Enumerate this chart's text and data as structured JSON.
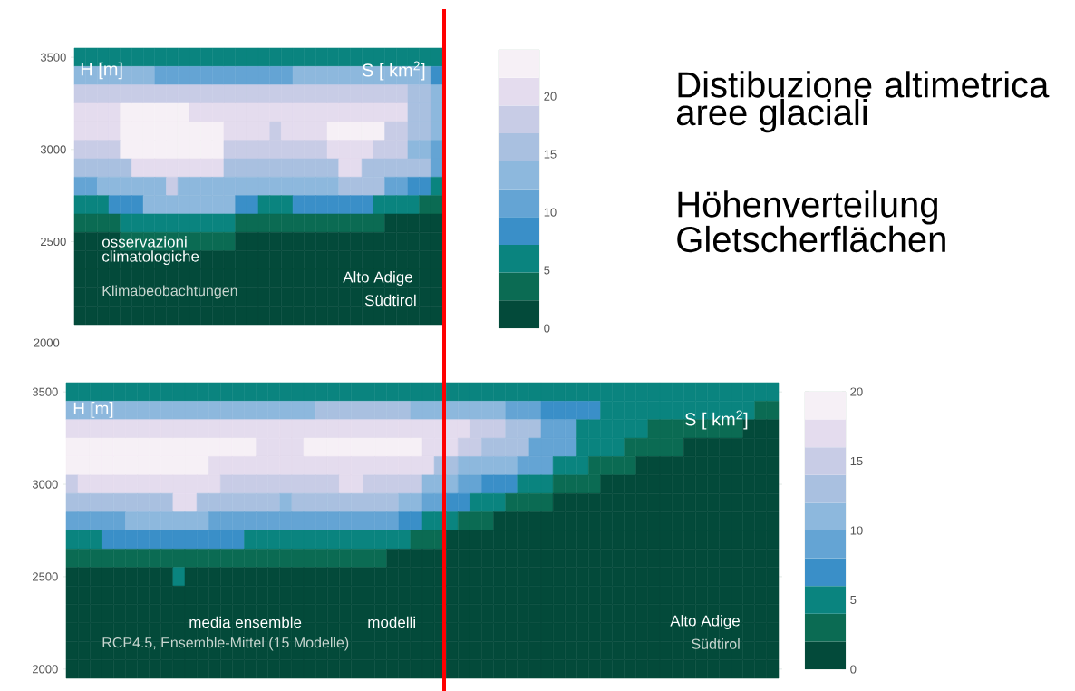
{
  "chart_data": [
    {
      "type": "heatmap",
      "categories": [
        null,
        null,
        null,
        null,
        null,
        null,
        null,
        null,
        null,
        null,
        null,
        null,
        null,
        null,
        null,
        null,
        null,
        null,
        null,
        null,
        null,
        null,
        null,
        null,
        null,
        null,
        null,
        null,
        null,
        null,
        null,
        null
      ],
      "y_categories": [
        "3500",
        null,
        null,
        null,
        null,
        "3000",
        null,
        null,
        null,
        null,
        "2500",
        null,
        null,
        null,
        null
      ],
      "clim": [
        0,
        24
      ],
      "cticks": [
        0,
        5,
        10,
        15,
        20
      ],
      "cells": [
        [
          6,
          6,
          6,
          6,
          6,
          6,
          6,
          6,
          6,
          6,
          6,
          6,
          6,
          6,
          6,
          6,
          6,
          6,
          6,
          6,
          6,
          6,
          6,
          6,
          6,
          6,
          6,
          6,
          6,
          6,
          6,
          6
        ],
        [
          13,
          13,
          13,
          13,
          13,
          13,
          13,
          11,
          11,
          11,
          11,
          11,
          11,
          11,
          11,
          11,
          11,
          11,
          11,
          13,
          13,
          13,
          13,
          13,
          13,
          13,
          13,
          13,
          13,
          13,
          13,
          8
        ],
        [
          18,
          18,
          18,
          18,
          18,
          18,
          18,
          18,
          18,
          18,
          18,
          18,
          18,
          18,
          18,
          18,
          18,
          18,
          18,
          18,
          18,
          18,
          18,
          18,
          18,
          18,
          18,
          18,
          18,
          16,
          16,
          13
        ],
        [
          20,
          20,
          20,
          20,
          23,
          23,
          23,
          23,
          23,
          23,
          20,
          20,
          20,
          20,
          20,
          20,
          20,
          20,
          20,
          20,
          20,
          20,
          20,
          20,
          20,
          20,
          20,
          20,
          20,
          16,
          16,
          13
        ],
        [
          20,
          20,
          20,
          20,
          23,
          23,
          23,
          23,
          23,
          23,
          23,
          23,
          23,
          20,
          20,
          20,
          20,
          18,
          20,
          20,
          20,
          20,
          23,
          23,
          23,
          23,
          23,
          18,
          18,
          16,
          16,
          13
        ],
        [
          18,
          18,
          18,
          18,
          23,
          23,
          23,
          23,
          23,
          23,
          23,
          23,
          23,
          18,
          18,
          18,
          18,
          18,
          18,
          18,
          18,
          18,
          20,
          20,
          20,
          20,
          18,
          18,
          18,
          13,
          13,
          11
        ],
        [
          16,
          16,
          16,
          16,
          16,
          20,
          20,
          20,
          20,
          20,
          20,
          20,
          20,
          16,
          16,
          16,
          16,
          16,
          16,
          16,
          16,
          16,
          16,
          20,
          20,
          16,
          16,
          16,
          16,
          16,
          16,
          11
        ],
        [
          11,
          11,
          13,
          13,
          13,
          13,
          13,
          13,
          18,
          13,
          13,
          13,
          13,
          13,
          13,
          13,
          13,
          13,
          13,
          13,
          13,
          13,
          13,
          16,
          16,
          16,
          16,
          11,
          11,
          8,
          8,
          6
        ],
        [
          6,
          6,
          6,
          8,
          8,
          8,
          13,
          13,
          13,
          13,
          13,
          13,
          13,
          13,
          8,
          8,
          6,
          6,
          6,
          8,
          8,
          8,
          8,
          8,
          8,
          8,
          6,
          6,
          6,
          6,
          4,
          4
        ],
        [
          4,
          4,
          4,
          4,
          6,
          6,
          6,
          6,
          6,
          6,
          6,
          6,
          6,
          6,
          4,
          4,
          4,
          4,
          4,
          4,
          4,
          4,
          4,
          4,
          4,
          4,
          4,
          1,
          1,
          1,
          1,
          1
        ],
        [
          1,
          1,
          1,
          1,
          4,
          4,
          4,
          4,
          4,
          4,
          4,
          4,
          4,
          4,
          1,
          1,
          1,
          1,
          1,
          1,
          1,
          1,
          1,
          1,
          1,
          1,
          1,
          1,
          1,
          1,
          1,
          1
        ],
        [
          1,
          1,
          1,
          1,
          1,
          1,
          1,
          1,
          1,
          1,
          1,
          1,
          1,
          1,
          1,
          1,
          1,
          1,
          1,
          1,
          1,
          1,
          1,
          1,
          1,
          1,
          1,
          1,
          1,
          1,
          1,
          1
        ],
        [
          1,
          1,
          1,
          1,
          1,
          1,
          1,
          1,
          1,
          1,
          1,
          1,
          1,
          1,
          1,
          1,
          1,
          1,
          1,
          1,
          1,
          1,
          1,
          1,
          1,
          1,
          1,
          1,
          1,
          1,
          1,
          1
        ],
        [
          1,
          1,
          1,
          1,
          1,
          1,
          1,
          1,
          1,
          1,
          1,
          1,
          1,
          1,
          1,
          1,
          1,
          1,
          1,
          1,
          1,
          1,
          1,
          1,
          1,
          1,
          1,
          1,
          1,
          1,
          1,
          1
        ],
        [
          1,
          1,
          1,
          1,
          1,
          1,
          1,
          1,
          1,
          1,
          1,
          1,
          1,
          1,
          1,
          1,
          1,
          1,
          1,
          1,
          1,
          1,
          1,
          1,
          1,
          1,
          1,
          1,
          1,
          1,
          1,
          1
        ]
      ],
      "annotations": [
        "H [m]",
        "S [ km$^{2}$]",
        "osservazioni climatologiche",
        "Klimabeobachtungen",
        "Alto Adige",
        "Südtirol",
        "2000"
      ]
    },
    {
      "type": "heatmap",
      "categories": [
        null,
        null,
        null,
        null,
        null,
        null,
        null,
        null,
        null,
        null,
        null,
        null,
        null,
        null,
        null,
        null,
        null,
        null,
        null,
        null,
        null,
        null,
        null,
        null,
        null,
        null,
        null,
        null,
        null,
        null,
        null,
        null,
        null,
        null,
        null,
        null,
        null,
        null,
        null,
        null,
        null,
        null,
        null,
        null,
        null,
        null,
        null,
        null,
        null,
        null,
        null,
        null,
        null,
        null,
        null,
        null,
        null,
        null,
        null,
        null
      ],
      "y_categories": [
        "3500",
        null,
        null,
        null,
        null,
        "3000",
        null,
        null,
        null,
        null,
        "2500",
        null,
        null,
        null,
        null,
        "2000"
      ],
      "clim": [
        0,
        20
      ],
      "cticks": [
        0,
        5,
        10,
        15,
        20
      ],
      "cells": [
        [
          5,
          5,
          5,
          5,
          5,
          5,
          5,
          5,
          5,
          5,
          5,
          5,
          5,
          5,
          5,
          5,
          5,
          5,
          5,
          5,
          5,
          5,
          5,
          5,
          5,
          5,
          5,
          5,
          5,
          5,
          5,
          5,
          5,
          5,
          5,
          5,
          5,
          5,
          5,
          5,
          5,
          5,
          5,
          5,
          5,
          5,
          5,
          5,
          5,
          5,
          5,
          5,
          5,
          5,
          5,
          5,
          5,
          5,
          5,
          5
        ],
        [
          11,
          11,
          11,
          11,
          11,
          11,
          11,
          11,
          11,
          11,
          11,
          11,
          11,
          11,
          11,
          11,
          11,
          11,
          11,
          11,
          11,
          13,
          13,
          13,
          13,
          13,
          13,
          13,
          13,
          11,
          11,
          11,
          11,
          11,
          11,
          11,
          11,
          9,
          9,
          9,
          7,
          7,
          7,
          7,
          7,
          5,
          5,
          5,
          5,
          5,
          5,
          5,
          5,
          5,
          5,
          5,
          5,
          5,
          3,
          3
        ],
        [
          17,
          17,
          17,
          17,
          17,
          17,
          17,
          17,
          17,
          17,
          17,
          17,
          17,
          17,
          17,
          17,
          17,
          17,
          17,
          17,
          17,
          17,
          17,
          17,
          17,
          17,
          17,
          17,
          17,
          17,
          17,
          17,
          17,
          17,
          15,
          15,
          15,
          13,
          13,
          13,
          9,
          9,
          9,
          5,
          5,
          5,
          5,
          5,
          5,
          3,
          3,
          3,
          3,
          3,
          3,
          3,
          3,
          1,
          1,
          1
        ],
        [
          19,
          19,
          19,
          19,
          19,
          19,
          19,
          19,
          19,
          19,
          19,
          19,
          19,
          19,
          19,
          19,
          17,
          17,
          17,
          17,
          19,
          19,
          19,
          19,
          19,
          19,
          19,
          19,
          19,
          19,
          17,
          17,
          17,
          15,
          15,
          13,
          13,
          13,
          13,
          9,
          9,
          9,
          9,
          5,
          5,
          5,
          5,
          3,
          3,
          3,
          3,
          3,
          1,
          1,
          1,
          1,
          1,
          1,
          1,
          1
        ],
        [
          19,
          19,
          19,
          19,
          19,
          19,
          19,
          19,
          19,
          19,
          19,
          19,
          17,
          17,
          17,
          17,
          17,
          17,
          17,
          17,
          17,
          17,
          17,
          17,
          17,
          17,
          17,
          17,
          17,
          17,
          17,
          13,
          13,
          11,
          11,
          11,
          11,
          11,
          9,
          9,
          9,
          5,
          5,
          5,
          3,
          3,
          3,
          3,
          1,
          1,
          1,
          1,
          1,
          1,
          1,
          1,
          1,
          1,
          1,
          1
        ],
        [
          15,
          17,
          17,
          17,
          17,
          17,
          17,
          17,
          17,
          17,
          17,
          17,
          17,
          15,
          15,
          15,
          15,
          15,
          15,
          15,
          15,
          15,
          15,
          17,
          17,
          15,
          15,
          15,
          15,
          15,
          11,
          11,
          11,
          9,
          9,
          7,
          7,
          7,
          5,
          5,
          5,
          3,
          3,
          3,
          3,
          1,
          1,
          1,
          1,
          1,
          1,
          1,
          1,
          1,
          1,
          1,
          1,
          1,
          1,
          1
        ],
        [
          13,
          13,
          13,
          13,
          13,
          13,
          13,
          13,
          13,
          17,
          17,
          13,
          13,
          13,
          13,
          13,
          13,
          13,
          11,
          13,
          13,
          13,
          13,
          13,
          13,
          13,
          13,
          13,
          11,
          11,
          9,
          9,
          7,
          7,
          5,
          5,
          5,
          3,
          3,
          3,
          3,
          1,
          1,
          1,
          1,
          1,
          1,
          1,
          1,
          1,
          1,
          1,
          1,
          1,
          1,
          1,
          1,
          1,
          1,
          1
        ],
        [
          9,
          9,
          9,
          9,
          9,
          11,
          11,
          11,
          11,
          11,
          11,
          11,
          9,
          9,
          9,
          9,
          9,
          9,
          9,
          9,
          9,
          9,
          9,
          9,
          9,
          9,
          9,
          9,
          7,
          7,
          5,
          5,
          5,
          3,
          3,
          3,
          1,
          1,
          1,
          1,
          1,
          1,
          1,
          1,
          1,
          1,
          1,
          1,
          1,
          1,
          1,
          1,
          1,
          1,
          1,
          1,
          1,
          1,
          1,
          1
        ],
        [
          5,
          5,
          5,
          7,
          7,
          7,
          7,
          7,
          7,
          7,
          7,
          7,
          7,
          7,
          7,
          5,
          5,
          5,
          5,
          5,
          5,
          5,
          5,
          5,
          5,
          5,
          5,
          5,
          5,
          3,
          3,
          3,
          1,
          1,
          1,
          1,
          1,
          1,
          1,
          1,
          1,
          1,
          1,
          1,
          1,
          1,
          1,
          1,
          1,
          1,
          1,
          1,
          1,
          1,
          1,
          1,
          1,
          1,
          1,
          1
        ],
        [
          3,
          3,
          3,
          3,
          3,
          3,
          3,
          3,
          3,
          3,
          3,
          3,
          3,
          3,
          3,
          3,
          3,
          3,
          3,
          3,
          3,
          3,
          3,
          3,
          3,
          3,
          3,
          1,
          1,
          1,
          1,
          1,
          1,
          1,
          1,
          1,
          1,
          1,
          1,
          1,
          1,
          1,
          1,
          1,
          1,
          1,
          1,
          1,
          1,
          1,
          1,
          1,
          1,
          1,
          1,
          1,
          1,
          1,
          1,
          1
        ],
        [
          1,
          1,
          1,
          1,
          1,
          1,
          1,
          1,
          1,
          5,
          1,
          1,
          1,
          1,
          1,
          1,
          1,
          1,
          1,
          1,
          1,
          1,
          1,
          1,
          1,
          1,
          1,
          1,
          1,
          1,
          1,
          1,
          1,
          1,
          1,
          1,
          1,
          1,
          1,
          1,
          1,
          1,
          1,
          1,
          1,
          1,
          1,
          1,
          1,
          1,
          1,
          1,
          1,
          1,
          1,
          1,
          1,
          1,
          1,
          1
        ],
        [
          1,
          1,
          1,
          1,
          1,
          1,
          1,
          1,
          1,
          1,
          1,
          1,
          1,
          1,
          1,
          1,
          1,
          1,
          1,
          1,
          1,
          1,
          1,
          1,
          1,
          1,
          1,
          1,
          1,
          1,
          1,
          1,
          1,
          1,
          1,
          1,
          1,
          1,
          1,
          1,
          1,
          1,
          1,
          1,
          1,
          1,
          1,
          1,
          1,
          1,
          1,
          1,
          1,
          1,
          1,
          1,
          1,
          1,
          1,
          1
        ],
        [
          1,
          1,
          1,
          1,
          1,
          1,
          1,
          1,
          1,
          1,
          1,
          1,
          1,
          1,
          1,
          1,
          1,
          1,
          1,
          1,
          1,
          1,
          1,
          1,
          1,
          1,
          1,
          1,
          1,
          1,
          1,
          1,
          1,
          1,
          1,
          1,
          1,
          1,
          1,
          1,
          1,
          1,
          1,
          1,
          1,
          1,
          1,
          1,
          1,
          1,
          1,
          1,
          1,
          1,
          1,
          1,
          1,
          1,
          1,
          1
        ],
        [
          1,
          1,
          1,
          1,
          1,
          1,
          1,
          1,
          1,
          1,
          1,
          1,
          1,
          1,
          1,
          1,
          1,
          1,
          1,
          1,
          1,
          1,
          1,
          1,
          1,
          1,
          1,
          1,
          1,
          1,
          1,
          1,
          1,
          1,
          1,
          1,
          1,
          1,
          1,
          1,
          1,
          1,
          1,
          1,
          1,
          1,
          1,
          1,
          1,
          1,
          1,
          1,
          1,
          1,
          1,
          1,
          1,
          1,
          1,
          1
        ],
        [
          1,
          1,
          1,
          1,
          1,
          1,
          1,
          1,
          1,
          1,
          1,
          1,
          1,
          1,
          1,
          1,
          1,
          1,
          1,
          1,
          1,
          1,
          1,
          1,
          1,
          1,
          1,
          1,
          1,
          1,
          1,
          1,
          1,
          1,
          1,
          1,
          1,
          1,
          1,
          1,
          1,
          1,
          1,
          1,
          1,
          1,
          1,
          1,
          1,
          1,
          1,
          1,
          1,
          1,
          1,
          1,
          1,
          1,
          1,
          1
        ],
        [
          1,
          1,
          1,
          1,
          1,
          1,
          1,
          1,
          1,
          1,
          1,
          1,
          1,
          1,
          1,
          1,
          1,
          1,
          1,
          1,
          1,
          1,
          1,
          1,
          1,
          1,
          1,
          1,
          1,
          1,
          1,
          1,
          1,
          1,
          1,
          1,
          1,
          1,
          1,
          1,
          1,
          1,
          1,
          1,
          1,
          1,
          1,
          1,
          1,
          1,
          1,
          1,
          1,
          1,
          1,
          1,
          1,
          1,
          1,
          1
        ]
      ],
      "annotations": [
        "H [m]",
        "S [ km$^{2}$]",
        "media ensemble",
        "modelli",
        "RCP4.5, Ensemble-Mittel (15 Modelle)",
        "Alto Adige",
        "Südtirol"
      ]
    },
    {
      "type": "other",
      "title": "Distibuzione altimetrica aree glaciali",
      "subtitle": "Höhenverteilung Gletscherflächen"
    }
  ]
}
